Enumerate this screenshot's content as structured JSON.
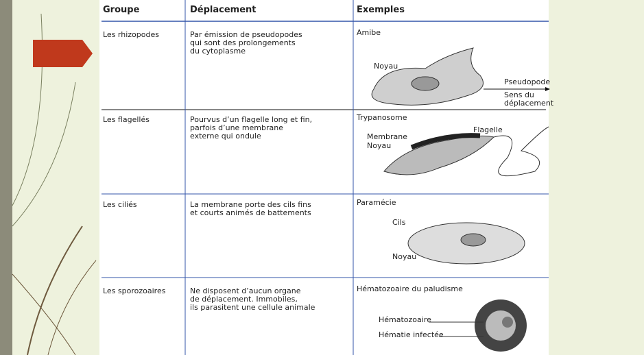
{
  "table": {
    "headers": [
      "Groupe",
      "Déplacement",
      "Exemples"
    ],
    "rows": [
      {
        "group": "Les rhizopodes",
        "movement": [
          "Par émission de pseudopodes",
          "qui sont des prolongements",
          "du cytoplasme"
        ],
        "example": "Amibe",
        "labels": [
          "Noyau",
          "Pseudopode",
          "Sens du",
          "déplacement"
        ]
      },
      {
        "group": "Les flagellés",
        "movement": [
          "Pourvus d’un flagelle long et fin,",
          "parfois d’une membrane",
          "externe qui ondule"
        ],
        "example": "Trypanosome",
        "labels": [
          "Flagelle",
          "Membrane",
          "Noyau"
        ]
      },
      {
        "group": "Les ciliés",
        "movement": [
          "La membrane porte des cils fins",
          "et courts animés de battements"
        ],
        "example": "Paramécie",
        "labels": [
          "Cils",
          "Noyau"
        ]
      },
      {
        "group": "Les sporozoaires",
        "movement": [
          "Ne disposent d’aucun organe",
          "de déplacement. Immobiles,",
          "ils parasitent une cellule animale"
        ],
        "example": "Hématozoaire du paludisme",
        "labels": [
          "Hématozoaire",
          "Hématie infectée"
        ]
      }
    ]
  }
}
